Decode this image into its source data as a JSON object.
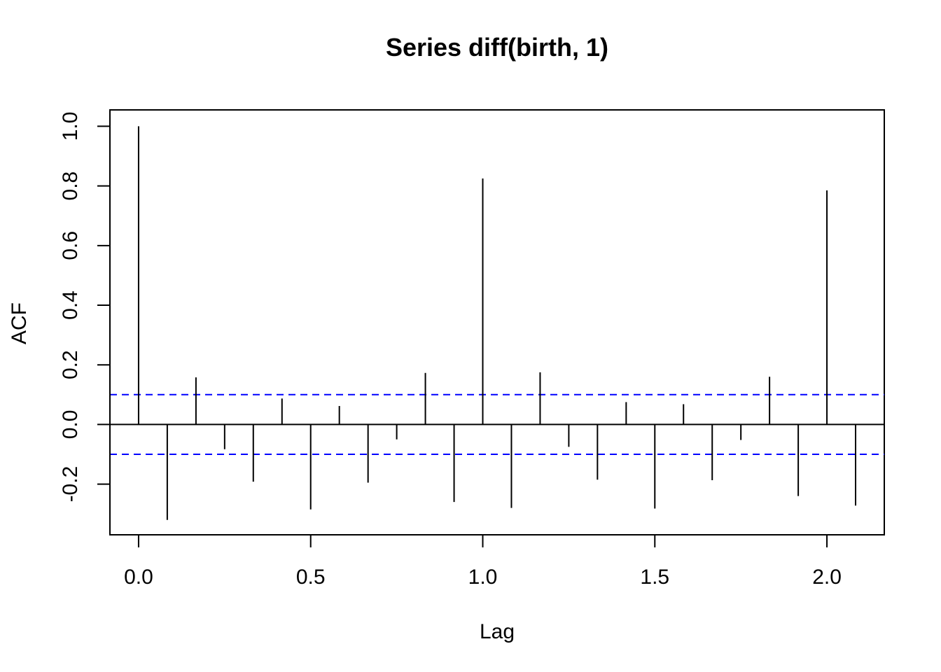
{
  "chart_data": {
    "type": "bar",
    "title": "Series  diff(birth, 1)",
    "xlabel": "Lag",
    "ylabel": "ACF",
    "xlim": [
      -0.0833,
      2.1667
    ],
    "ylim": [
      -0.37,
      1.055
    ],
    "x_ticks": [
      {
        "value": 0.0,
        "label": "0.0"
      },
      {
        "value": 0.5,
        "label": "0.5"
      },
      {
        "value": 1.0,
        "label": "1.0"
      },
      {
        "value": 1.5,
        "label": "1.5"
      },
      {
        "value": 2.0,
        "label": "2.0"
      }
    ],
    "y_ticks": [
      {
        "value": -0.2,
        "label": "-0.2"
      },
      {
        "value": 0.0,
        "label": "0.0"
      },
      {
        "value": 0.2,
        "label": "0.2"
      },
      {
        "value": 0.4,
        "label": "0.4"
      },
      {
        "value": 0.6,
        "label": "0.6"
      },
      {
        "value": 0.8,
        "label": "0.8"
      },
      {
        "value": 1.0,
        "label": "1.0"
      }
    ],
    "confidence_bound": 0.1,
    "confidence_color": "#0000ff",
    "grid": false,
    "x": [
      0.0,
      0.0833,
      0.1667,
      0.25,
      0.3333,
      0.4167,
      0.5,
      0.5833,
      0.6667,
      0.75,
      0.8333,
      0.9167,
      1.0,
      1.0833,
      1.1667,
      1.25,
      1.3333,
      1.4167,
      1.5,
      1.5833,
      1.6667,
      1.75,
      1.8333,
      1.9167,
      2.0,
      2.0833
    ],
    "values": [
      1.0,
      -0.32,
      0.158,
      -0.083,
      -0.192,
      0.087,
      -0.285,
      0.062,
      -0.195,
      -0.05,
      0.173,
      -0.26,
      0.825,
      -0.28,
      0.175,
      -0.075,
      -0.185,
      0.075,
      -0.282,
      0.068,
      -0.187,
      -0.052,
      0.16,
      -0.24,
      0.785,
      -0.272
    ]
  }
}
